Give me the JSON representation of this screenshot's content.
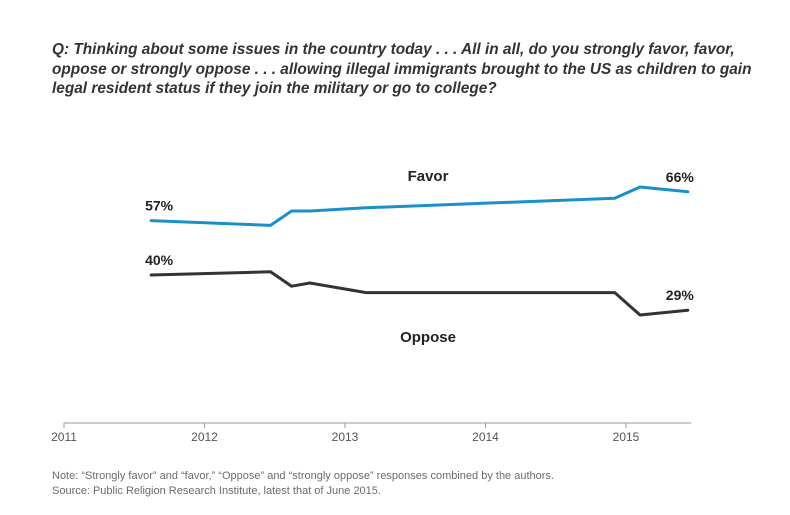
{
  "question": "Q: Thinking about some issues in the country today . . . All in all, do you strongly favor, favor, oppose or strongly oppose . . . allowing illegal immigrants brought to the US as children to gain legal resident status if they join the military or go to college?",
  "note": "Note: “Strongly favor” and “favor,” “Oppose” and “strongly oppose” responses combined by the authors.",
  "source": "Source: Public Religion Research Institute, latest that of June 2015.",
  "chart_data": {
    "type": "line",
    "title": "",
    "xlabel": "",
    "ylabel": "",
    "xlim": [
      2011,
      2015.45
    ],
    "ylim": [
      0,
      100
    ],
    "x_ticks": [
      2011,
      2012,
      2013,
      2014,
      2015
    ],
    "tick_labels": [
      "2011",
      "2012",
      "2013",
      "2014",
      "2015"
    ],
    "grid": false,
    "series": [
      {
        "name": "Favor",
        "color": "#1a8fc9",
        "x": [
          2011.62,
          2012.47,
          2012.62,
          2012.75,
          2013.15,
          2014.92,
          2015.1,
          2015.44
        ],
        "y": [
          57,
          55.5,
          60,
          60,
          61,
          64,
          67.5,
          66
        ],
        "start_label": "57%",
        "end_label": "66%"
      },
      {
        "name": "Oppose",
        "color": "#333333",
        "x": [
          2011.62,
          2012.47,
          2012.62,
          2012.75,
          2013.15,
          2014.92,
          2015.1,
          2015.44
        ],
        "y": [
          40,
          41,
          36.5,
          37.5,
          34.5,
          34.5,
          27.5,
          29
        ],
        "start_label": "40%",
        "end_label": "29%"
      }
    ]
  }
}
